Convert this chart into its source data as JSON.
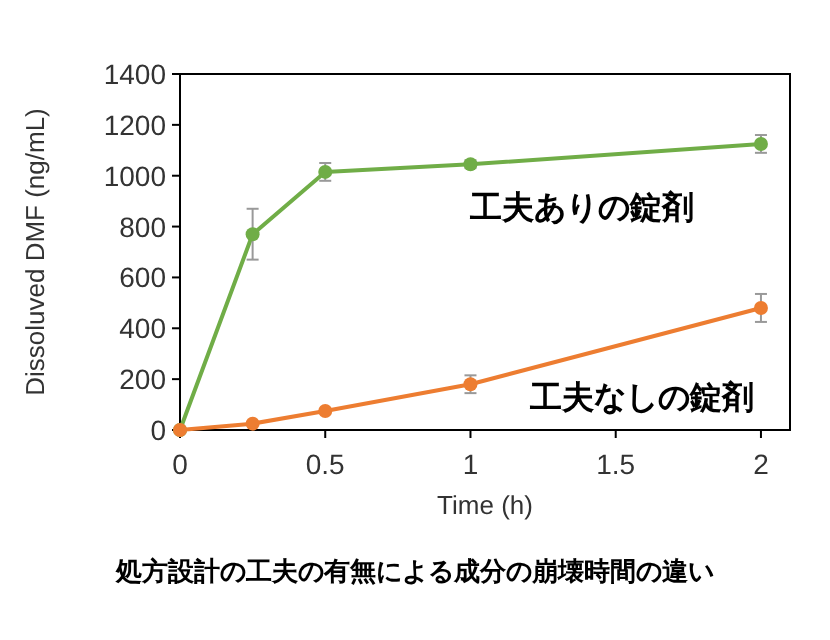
{
  "chart_data": {
    "type": "line",
    "title": "処方設計の工夫の有無による成分の崩壊時間の違い",
    "xlabel": "Time (h)",
    "ylabel": "Dissoluved DMF (ng/mL)",
    "x": [
      0,
      0.25,
      0.5,
      1,
      2
    ],
    "series": [
      {
        "name": "工夫ありの錠剤",
        "color": "#70ad47",
        "values": [
          0,
          770,
          1015,
          1045,
          1125
        ],
        "errors": [
          null,
          100,
          35,
          15,
          35
        ]
      },
      {
        "name": "工夫なしの錠剤",
        "color": "#ed7d31",
        "values": [
          0,
          25,
          75,
          180,
          480
        ],
        "errors": [
          null,
          null,
          null,
          35,
          55
        ]
      }
    ],
    "xlim": [
      0,
      2.1
    ],
    "xticks": [
      0,
      0.5,
      1,
      1.5,
      2
    ],
    "ylim": [
      0,
      1400
    ],
    "yticks": [
      0,
      200,
      400,
      600,
      800,
      1000,
      1200,
      1400
    ],
    "marker": "circle",
    "line_style": "solid",
    "grid": false,
    "legend": false
  }
}
